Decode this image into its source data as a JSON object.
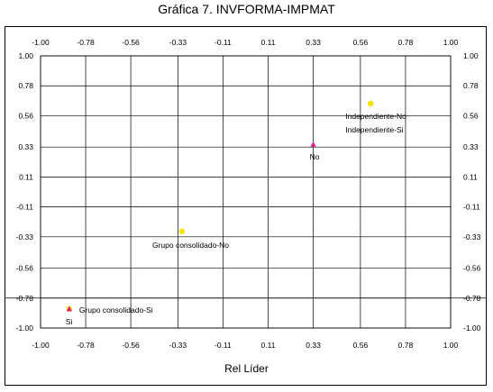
{
  "chart_data": {
    "type": "scatter",
    "title": "Gráfica 7. INVFORMA-IMPMAT",
    "xlabel": "Rel Líder",
    "ylabel": "",
    "xlim": [
      -1.0,
      1.0
    ],
    "ylim": [
      -1.0,
      1.0
    ],
    "x_ticks": [
      "-1.00",
      "-0.78",
      "-0.56",
      "-0.33",
      "-0.11",
      "0.11",
      "0.33",
      "0.56",
      "0.78",
      "1.00"
    ],
    "y_ticks": [
      "1.00",
      "0.78",
      "0.56",
      "0.33",
      "0.11",
      "-0.11",
      "-0.33",
      "-0.56",
      "-0.78",
      "-1.00"
    ],
    "grid": true,
    "points": [
      {
        "label": "Independiente-No",
        "x": 0.61,
        "y": 0.65,
        "color": "#f2e600",
        "shape": "circle"
      },
      {
        "label": "Independiente-Si",
        "x": 0.61,
        "y": 0.65,
        "color": "#f2e600",
        "shape": "circle"
      },
      {
        "label": "No",
        "x": 0.33,
        "y": 0.35,
        "color": "#e0208a",
        "shape": "triangle"
      },
      {
        "label": "Grupo consolidado-No",
        "x": -0.31,
        "y": -0.29,
        "color": "#f2e600",
        "shape": "circle"
      },
      {
        "label": "Grupo consolidado-Si",
        "x": -0.86,
        "y": -0.86,
        "color": "#f2e600",
        "shape": "circle"
      },
      {
        "label": "Si",
        "x": -0.86,
        "y": -0.86,
        "color": "#e0208a",
        "shape": "triangle"
      }
    ]
  }
}
